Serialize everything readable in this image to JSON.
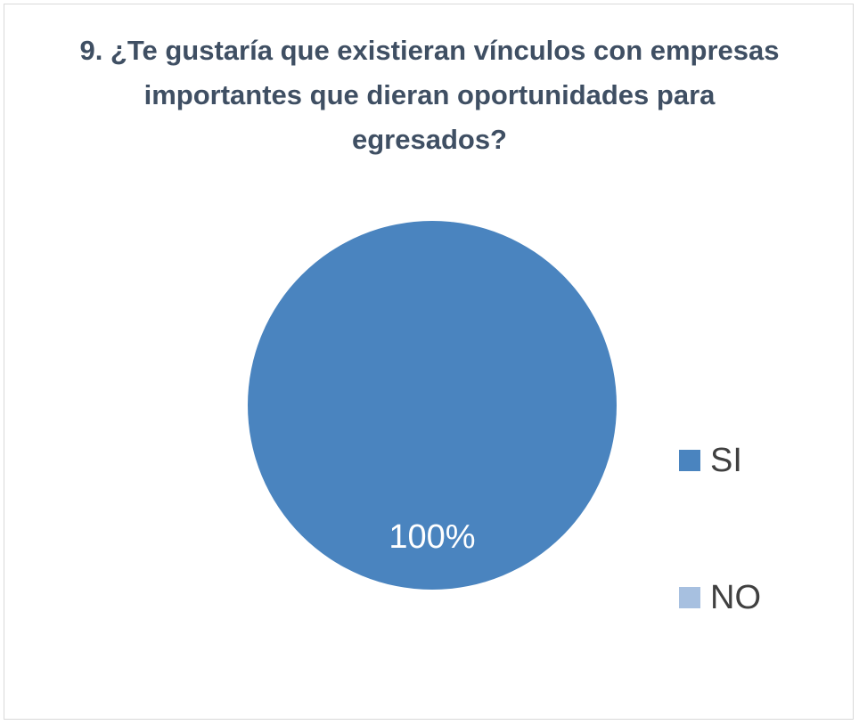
{
  "chart_data": {
    "type": "pie",
    "title": "9. ¿Te gustaría que existieran vínculos con empresas importantes que dieran oportunidades para egresados?",
    "categories": [
      "SI",
      "NO"
    ],
    "values": [
      100,
      0
    ],
    "value_labels": [
      "100%",
      null
    ],
    "colors": [
      "#4a84bf",
      "#a7c0e0"
    ],
    "legend": "right"
  }
}
